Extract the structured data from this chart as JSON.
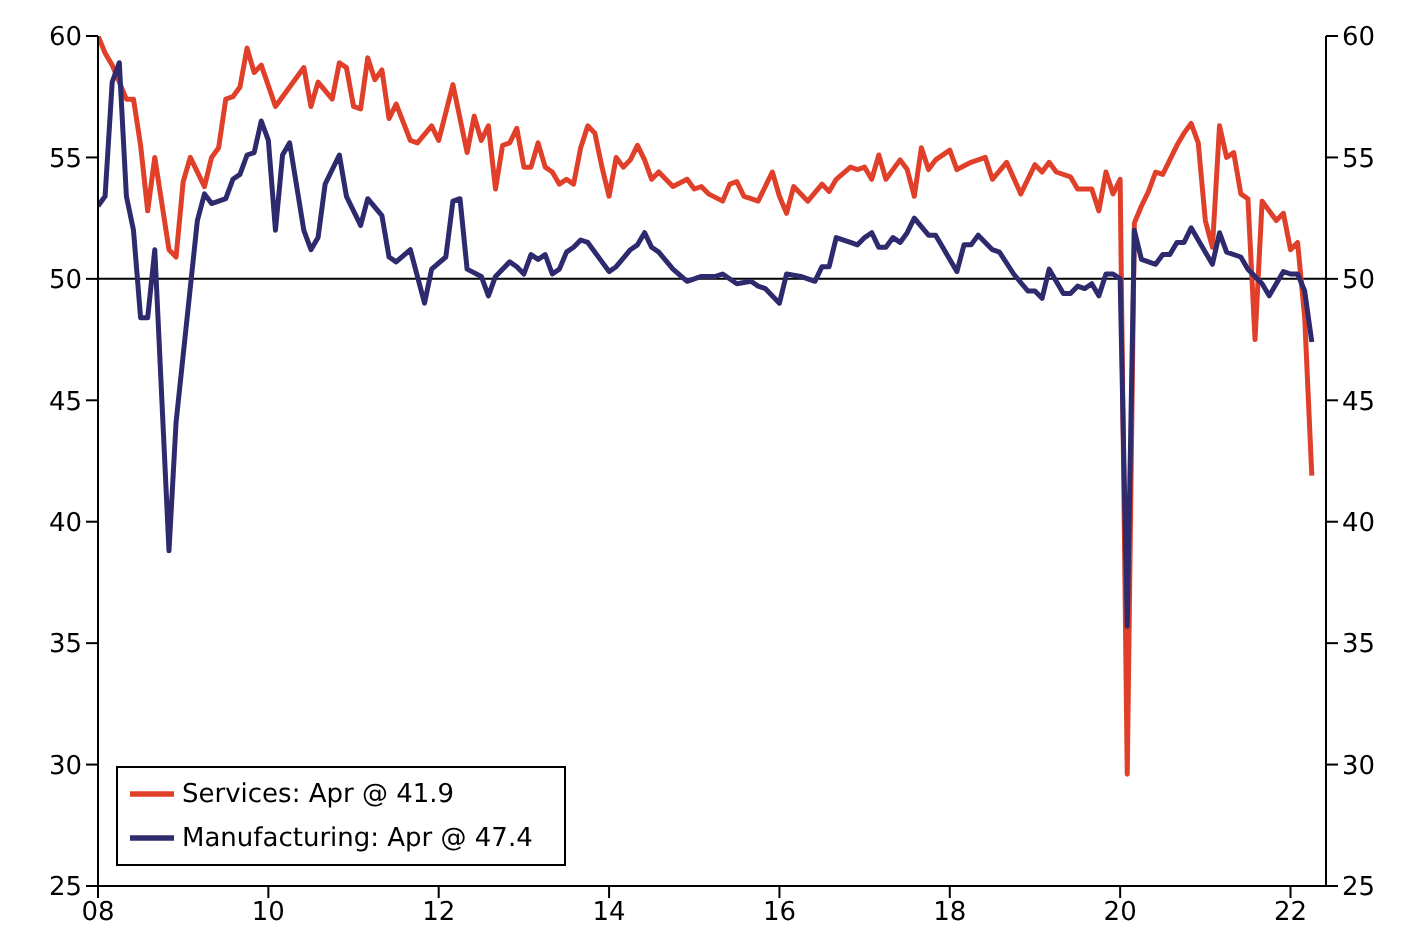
{
  "chart_data": {
    "type": "line",
    "xlim": [
      "2008-01",
      "2022-06"
    ],
    "xticks": [
      {
        "value": "2008",
        "label": "08"
      },
      {
        "value": "2010",
        "label": "10"
      },
      {
        "value": "2012",
        "label": "12"
      },
      {
        "value": "2014",
        "label": "14"
      },
      {
        "value": "2016",
        "label": "16"
      },
      {
        "value": "2018",
        "label": "18"
      },
      {
        "value": "2020",
        "label": "20"
      },
      {
        "value": "2022",
        "label": "22"
      }
    ],
    "ylim": [
      25,
      60
    ],
    "yticks": [
      25,
      30,
      35,
      40,
      45,
      50,
      55,
      60
    ],
    "y2lim": [
      25,
      60
    ],
    "y2ticks": [
      25,
      30,
      35,
      40,
      45,
      50,
      55,
      60
    ],
    "ref_lines": [
      {
        "axis": "y",
        "value": 50,
        "color": "#000000"
      }
    ],
    "legend": "bottom left",
    "grid": false,
    "marker": "none",
    "line_style": "solid",
    "series": [
      {
        "name": "Services: Apr @ 41.9",
        "color": "#e0402a",
        "x": [
          "2008-01",
          "2008-02",
          "2008-03",
          "2008-05",
          "2008-06",
          "2008-07",
          "2008-08",
          "2008-09",
          "2008-11",
          "2008-12",
          "2009-01",
          "2009-02",
          "2009-04",
          "2009-05",
          "2009-06",
          "2009-07",
          "2009-08",
          "2009-09",
          "2009-10",
          "2009-11",
          "2009-12",
          "2010-02",
          "2010-04",
          "2010-06",
          "2010-07",
          "2010-08",
          "2010-10",
          "2010-11",
          "2010-12",
          "2011-01",
          "2011-02",
          "2011-03",
          "2011-04",
          "2011-05",
          "2011-06",
          "2011-07",
          "2011-09",
          "2011-10",
          "2011-12",
          "2012-01",
          "2012-03",
          "2012-05",
          "2012-06",
          "2012-07",
          "2012-08",
          "2012-09",
          "2012-10",
          "2012-11",
          "2012-12",
          "2013-01",
          "2013-02",
          "2013-03",
          "2013-04",
          "2013-05",
          "2013-06",
          "2013-07",
          "2013-08",
          "2013-09",
          "2013-10",
          "2013-11",
          "2013-12",
          "2014-01",
          "2014-02",
          "2014-03",
          "2014-04",
          "2014-05",
          "2014-06",
          "2014-07",
          "2014-08",
          "2014-10",
          "2014-12",
          "2015-01",
          "2015-02",
          "2015-03",
          "2015-05",
          "2015-06",
          "2015-07",
          "2015-08",
          "2015-09",
          "2015-10",
          "2015-12",
          "2016-01",
          "2016-02",
          "2016-03",
          "2016-05",
          "2016-07",
          "2016-08",
          "2016-09",
          "2016-11",
          "2016-12",
          "2017-01",
          "2017-02",
          "2017-03",
          "2017-04",
          "2017-06",
          "2017-07",
          "2017-08",
          "2017-09",
          "2017-10",
          "2017-11",
          "2018-01",
          "2018-02",
          "2018-04",
          "2018-06",
          "2018-07",
          "2018-09",
          "2018-11",
          "2019-01",
          "2019-02",
          "2019-03",
          "2019-04",
          "2019-06",
          "2019-07",
          "2019-09",
          "2019-10",
          "2019-11",
          "2019-12",
          "2020-01",
          "2020-02",
          "2020-03",
          "2020-04",
          "2020-05",
          "2020-06",
          "2020-07",
          "2020-09",
          "2020-10",
          "2020-11",
          "2020-12",
          "2021-01",
          "2021-02",
          "2021-03",
          "2021-04",
          "2021-05",
          "2021-06",
          "2021-07",
          "2021-08",
          "2021-09",
          "2021-11",
          "2021-12",
          "2022-01",
          "2022-02",
          "2022-03",
          "2022-04"
        ],
        "values": [
          60.0,
          59.3,
          58.8,
          57.4,
          57.4,
          55.5,
          52.8,
          55.0,
          51.2,
          50.9,
          54.0,
          55.0,
          53.8,
          55.0,
          55.4,
          57.4,
          57.5,
          57.9,
          59.5,
          58.5,
          58.8,
          57.1,
          57.9,
          58.7,
          57.1,
          58.1,
          57.4,
          58.9,
          58.7,
          57.1,
          57.0,
          59.1,
          58.2,
          58.6,
          56.6,
          57.2,
          55.7,
          55.6,
          56.3,
          55.7,
          58.0,
          55.2,
          56.7,
          55.7,
          56.3,
          53.7,
          55.5,
          55.6,
          56.2,
          54.6,
          54.6,
          55.6,
          54.6,
          54.4,
          53.9,
          54.1,
          53.9,
          55.4,
          56.3,
          56.0,
          54.6,
          53.4,
          55.0,
          54.6,
          54.9,
          55.5,
          54.9,
          54.1,
          54.4,
          53.8,
          54.1,
          53.7,
          53.8,
          53.5,
          53.2,
          53.9,
          54.0,
          53.4,
          53.3,
          53.2,
          54.4,
          53.4,
          52.7,
          53.8,
          53.2,
          53.9,
          53.6,
          54.1,
          54.6,
          54.5,
          54.6,
          54.1,
          55.1,
          54.1,
          54.9,
          54.5,
          53.4,
          55.4,
          54.5,
          54.9,
          55.3,
          54.5,
          54.8,
          55.0,
          54.1,
          54.8,
          53.5,
          54.7,
          54.4,
          54.8,
          54.4,
          54.2,
          53.7,
          53.7,
          52.8,
          54.4,
          53.5,
          54.1,
          29.6,
          52.3,
          53.0,
          53.6,
          54.4,
          54.3,
          55.5,
          56.0,
          56.4,
          55.6,
          52.4,
          51.3,
          56.3,
          55.0,
          55.2,
          53.5,
          53.3,
          47.5,
          53.2,
          52.4,
          52.7,
          51.2,
          51.5,
          48.4,
          41.9
        ]
      },
      {
        "name": "Manufacturing: Apr @ 47.4",
        "color": "#2e2a6e",
        "x": [
          "2008-01",
          "2008-02",
          "2008-03",
          "2008-04",
          "2008-05",
          "2008-06",
          "2008-07",
          "2008-08",
          "2008-09",
          "2008-11",
          "2008-12",
          "2009-03",
          "2009-04",
          "2009-05",
          "2009-07",
          "2009-08",
          "2009-09",
          "2009-10",
          "2009-11",
          "2009-12",
          "2010-01",
          "2010-02",
          "2010-03",
          "2010-04",
          "2010-06",
          "2010-07",
          "2010-08",
          "2010-09",
          "2010-11",
          "2010-12",
          "2011-02",
          "2011-03",
          "2011-05",
          "2011-06",
          "2011-07",
          "2011-09",
          "2011-11",
          "2011-12",
          "2012-02",
          "2012-03",
          "2012-04",
          "2012-05",
          "2012-07",
          "2012-08",
          "2012-09",
          "2012-11",
          "2012-12",
          "2013-01",
          "2013-02",
          "2013-03",
          "2013-04",
          "2013-05",
          "2013-06",
          "2013-07",
          "2013-08",
          "2013-09",
          "2013-10",
          "2013-12",
          "2014-01",
          "2014-02",
          "2014-04",
          "2014-05",
          "2014-06",
          "2014-07",
          "2014-08",
          "2014-10",
          "2014-12",
          "2015-02",
          "2015-04",
          "2015-05",
          "2015-07",
          "2015-09",
          "2015-10",
          "2015-11",
          "2016-01",
          "2016-02",
          "2016-04",
          "2016-06",
          "2016-07",
          "2016-08",
          "2016-09",
          "2016-11",
          "2016-12",
          "2017-01",
          "2017-02",
          "2017-03",
          "2017-04",
          "2017-05",
          "2017-06",
          "2017-07",
          "2017-08",
          "2017-10",
          "2017-11",
          "2017-12",
          "2018-02",
          "2018-03",
          "2018-04",
          "2018-05",
          "2018-07",
          "2018-08",
          "2018-10",
          "2018-12",
          "2019-01",
          "2019-02",
          "2019-03",
          "2019-05",
          "2019-06",
          "2019-07",
          "2019-08",
          "2019-09",
          "2019-10",
          "2019-11",
          "2019-12",
          "2020-01",
          "2020-02",
          "2020-03",
          "2020-04",
          "2020-06",
          "2020-07",
          "2020-08",
          "2020-09",
          "2020-10",
          "2020-11",
          "2020-12",
          "2021-02",
          "2021-03",
          "2021-04",
          "2021-06",
          "2021-07",
          "2021-09",
          "2021-10",
          "2021-12",
          "2022-01",
          "2022-02",
          "2022-03",
          "2022-04"
        ],
        "values": [
          53.0,
          53.4,
          58.1,
          58.9,
          53.4,
          52.0,
          48.4,
          48.4,
          51.2,
          38.8,
          44.1,
          52.4,
          53.5,
          53.1,
          53.3,
          54.1,
          54.3,
          55.1,
          55.2,
          56.5,
          55.7,
          52.0,
          55.1,
          55.6,
          52.0,
          51.2,
          51.7,
          53.9,
          55.1,
          53.4,
          52.2,
          53.3,
          52.6,
          50.9,
          50.7,
          51.2,
          49.0,
          50.4,
          50.9,
          53.2,
          53.3,
          50.4,
          50.1,
          49.3,
          50.1,
          50.7,
          50.5,
          50.2,
          51.0,
          50.8,
          51.0,
          50.2,
          50.4,
          51.1,
          51.3,
          51.6,
          51.5,
          50.7,
          50.3,
          50.5,
          51.2,
          51.4,
          51.9,
          51.3,
          51.1,
          50.4,
          49.9,
          50.1,
          50.1,
          50.2,
          49.8,
          49.9,
          49.7,
          49.6,
          49.0,
          50.2,
          50.1,
          49.9,
          50.5,
          50.5,
          51.7,
          51.5,
          51.4,
          51.7,
          51.9,
          51.3,
          51.3,
          51.7,
          51.5,
          51.9,
          52.5,
          51.8,
          51.8,
          51.3,
          50.3,
          51.4,
          51.4,
          51.8,
          51.2,
          51.1,
          50.2,
          49.5,
          49.5,
          49.2,
          50.4,
          49.4,
          49.4,
          49.7,
          49.6,
          49.8,
          49.3,
          50.2,
          50.2,
          50.0,
          35.7,
          52.0,
          50.8,
          50.6,
          51.0,
          51.0,
          51.5,
          51.5,
          52.1,
          51.6,
          50.6,
          51.9,
          51.1,
          50.9,
          50.4,
          49.8,
          49.3,
          50.3,
          50.2,
          50.2,
          49.5,
          47.4
        ]
      }
    ]
  }
}
